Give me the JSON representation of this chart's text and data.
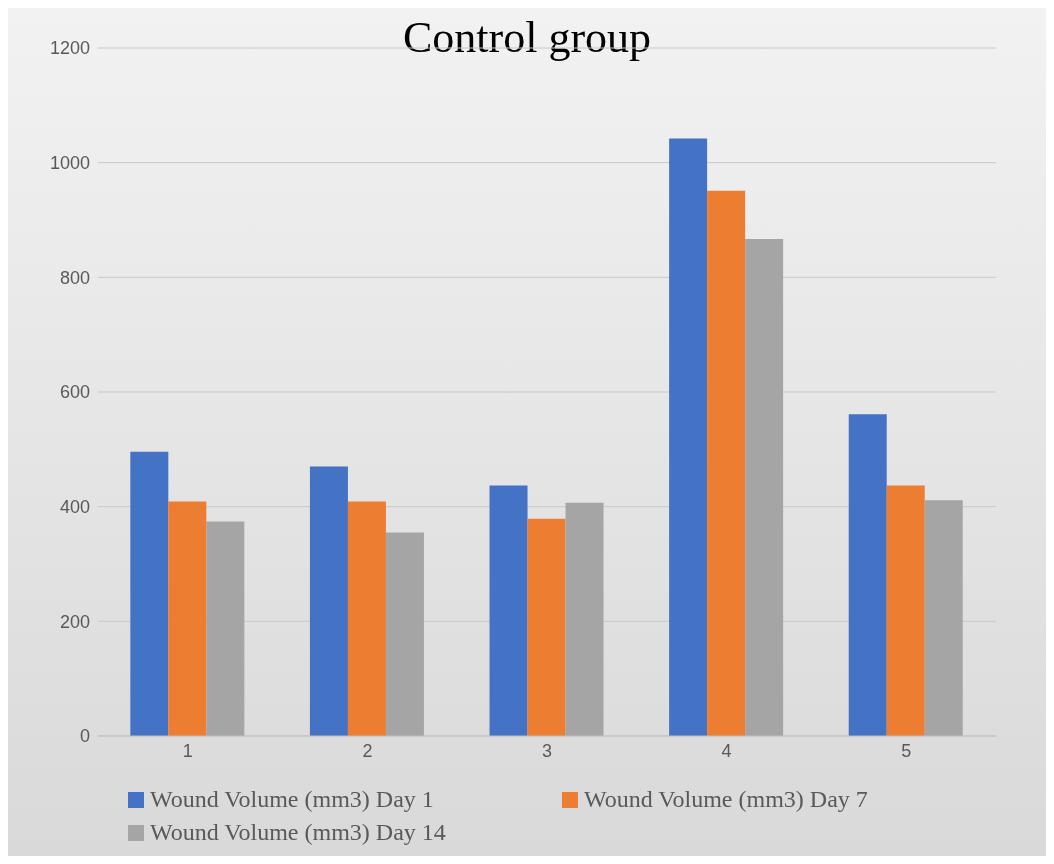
{
  "chart_data": {
    "type": "bar",
    "title": "Control group",
    "categories": [
      "1",
      "2",
      "3",
      "4",
      "5"
    ],
    "series": [
      {
        "name": "Wound Volume (mm3) Day 1",
        "color": "#4472c4",
        "values": [
          496,
          470,
          437,
          1042,
          561
        ]
      },
      {
        "name": "Wound Volume (mm3) Day 7",
        "color": "#ed7d31",
        "values": [
          409,
          409,
          379,
          951,
          437
        ]
      },
      {
        "name": "Wound Volume (mm3) Day 14",
        "color": "#a5a5a5",
        "values": [
          374,
          355,
          407,
          867,
          411
        ]
      }
    ],
    "ylim": [
      0,
      1200
    ],
    "yticks": [
      0,
      200,
      400,
      600,
      800,
      1000,
      1200
    ],
    "grid": "y",
    "legend": "bottom"
  }
}
